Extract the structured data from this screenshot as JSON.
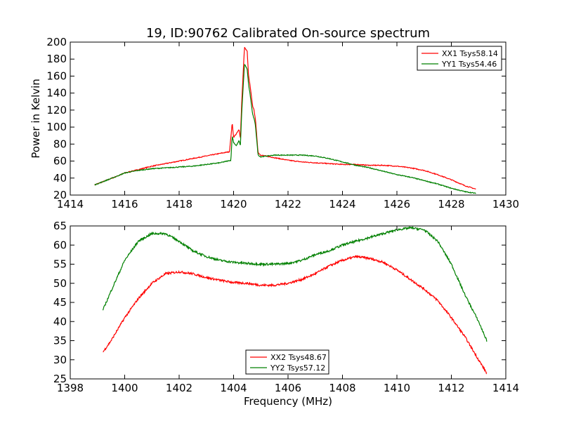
{
  "chart_data": [
    {
      "type": "line",
      "title": "19, ID:90762 Calibrated On-source spectrum",
      "xlabel": "",
      "ylabel": "Power in Kelvin",
      "xlim": [
        1414,
        1430
      ],
      "ylim": [
        20,
        200
      ],
      "xticks": [
        1414,
        1416,
        1418,
        1420,
        1422,
        1424,
        1426,
        1428,
        1430
      ],
      "yticks": [
        20,
        40,
        60,
        80,
        100,
        120,
        140,
        160,
        180,
        200
      ],
      "legend_position": "top-right",
      "series": [
        {
          "name": "XX1 Tsys58.14",
          "color": "#ff0000",
          "x": [
            1414.9,
            1415.3,
            1415.7,
            1416.0,
            1416.5,
            1417.0,
            1417.5,
            1418.0,
            1418.5,
            1419.0,
            1419.5,
            1419.85,
            1419.95,
            1420.0,
            1420.1,
            1420.2,
            1420.25,
            1420.3,
            1420.4,
            1420.5,
            1420.55,
            1420.6,
            1420.7,
            1420.75,
            1420.8,
            1420.9,
            1421.0,
            1421.5,
            1422.0,
            1422.5,
            1423.0,
            1423.5,
            1424.0,
            1424.5,
            1425.0,
            1425.5,
            1426.0,
            1426.5,
            1427.0,
            1427.5,
            1428.0,
            1428.5,
            1428.9
          ],
          "y": [
            32,
            37,
            42,
            46,
            50,
            54,
            57,
            60,
            63,
            66,
            69,
            71,
            105,
            88,
            92,
            97,
            87,
            130,
            194,
            189,
            160,
            150,
            125,
            120,
            110,
            70,
            67,
            64,
            61,
            59,
            58,
            57,
            56,
            56,
            55,
            55,
            54,
            52,
            49,
            44,
            38,
            31,
            27
          ]
        },
        {
          "name": "YY1 Tsys54.46",
          "color": "#008000",
          "x": [
            1414.9,
            1415.3,
            1415.7,
            1416.0,
            1416.5,
            1417.0,
            1417.5,
            1418.0,
            1418.5,
            1419.0,
            1419.5,
            1419.9,
            1419.95,
            1420.0,
            1420.1,
            1420.2,
            1420.25,
            1420.3,
            1420.4,
            1420.5,
            1420.55,
            1420.6,
            1420.7,
            1420.75,
            1420.8,
            1420.9,
            1421.0,
            1421.5,
            1422.0,
            1422.5,
            1423.0,
            1423.5,
            1424.0,
            1424.5,
            1425.0,
            1425.5,
            1426.0,
            1426.5,
            1427.0,
            1427.5,
            1428.0,
            1428.5,
            1428.9
          ],
          "y": [
            32,
            37,
            42,
            46,
            49,
            51,
            52,
            53,
            54,
            56,
            58,
            61,
            90,
            82,
            78,
            84,
            78,
            118,
            174,
            168,
            150,
            140,
            115,
            110,
            103,
            67,
            65,
            67,
            67,
            67,
            66,
            63,
            59,
            55,
            52,
            48,
            44,
            41,
            37,
            33,
            28,
            24,
            22
          ]
        }
      ]
    },
    {
      "type": "line",
      "title": "",
      "xlabel": "Frequency (MHz)",
      "ylabel": "",
      "xlim": [
        1398,
        1414
      ],
      "ylim": [
        25,
        65
      ],
      "xticks": [
        1398,
        1400,
        1402,
        1404,
        1406,
        1408,
        1410,
        1412,
        1414
      ],
      "yticks": [
        25,
        30,
        35,
        40,
        45,
        50,
        55,
        60,
        65
      ],
      "legend_position": "bottom-center",
      "series": [
        {
          "name": "XX2 Tsys48.67",
          "color": "#ff0000",
          "x": [
            1399.2,
            1399.5,
            1400.0,
            1400.5,
            1401.0,
            1401.5,
            1402.0,
            1402.5,
            1403.0,
            1403.5,
            1404.0,
            1404.5,
            1405.0,
            1405.5,
            1406.0,
            1406.5,
            1407.0,
            1407.5,
            1408.0,
            1408.5,
            1409.0,
            1409.5,
            1410.0,
            1410.5,
            1411.0,
            1411.5,
            1412.0,
            1412.5,
            1413.0,
            1413.3
          ],
          "y": [
            32,
            35,
            41,
            46,
            50,
            52.5,
            53,
            52.5,
            51.5,
            50.8,
            50.2,
            50,
            49.5,
            49.5,
            50,
            51,
            52.5,
            54.5,
            56,
            57,
            56.5,
            55.5,
            53.5,
            51,
            48.5,
            45.5,
            41,
            36,
            30,
            26.5
          ]
        },
        {
          "name": "YY2 Tsys57.12",
          "color": "#008000",
          "x": [
            1399.2,
            1399.5,
            1400.0,
            1400.5,
            1401.0,
            1401.5,
            1402.0,
            1402.5,
            1403.0,
            1403.5,
            1404.0,
            1404.5,
            1405.0,
            1405.5,
            1406.0,
            1406.5,
            1407.0,
            1407.5,
            1408.0,
            1408.5,
            1409.0,
            1409.5,
            1410.0,
            1410.5,
            1411.0,
            1411.5,
            1412.0,
            1412.5,
            1413.0,
            1413.3
          ],
          "y": [
            43,
            48,
            56,
            61,
            63,
            63,
            61,
            58.5,
            57,
            56,
            55.5,
            55.2,
            55,
            55,
            55.2,
            56,
            57.5,
            58.5,
            60,
            61,
            62,
            63,
            64,
            64.5,
            64,
            61,
            55,
            47,
            40,
            35
          ]
        }
      ]
    }
  ]
}
